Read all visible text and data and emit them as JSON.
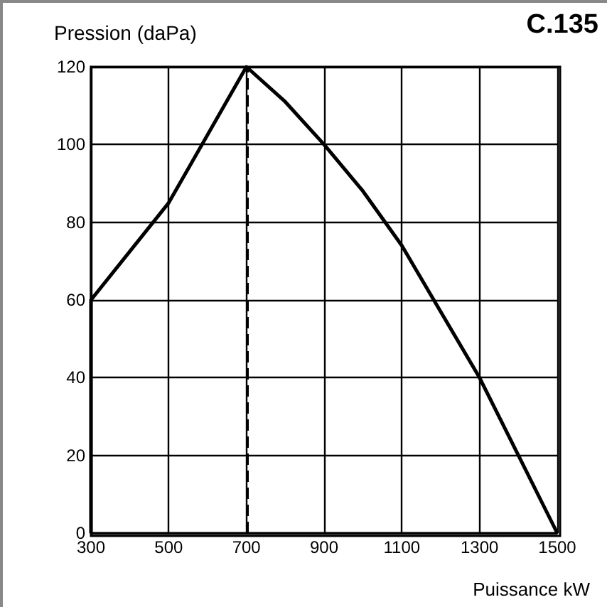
{
  "chart_data": {
    "type": "line",
    "title": "C.135",
    "xlabel": "Puissance kW",
    "ylabel": "Pression (daPa)",
    "x": [
      300,
      300,
      500,
      700,
      800,
      900,
      1000,
      1100,
      1200,
      1300,
      1400,
      1500
    ],
    "series": [
      {
        "color": "#000000",
        "values": [
          0,
          60,
          85,
          120,
          111,
          100,
          88,
          74,
          57,
          40,
          20,
          0
        ]
      }
    ],
    "xlim": [
      300,
      1500
    ],
    "xticks": [
      300,
      500,
      700,
      900,
      1100,
      1300,
      1500
    ],
    "ylim": [
      0,
      120
    ],
    "yticks": [
      0,
      20,
      40,
      60,
      80,
      100,
      120
    ],
    "ref_lines": [
      {
        "axis": "x",
        "value": 700,
        "color": "#000000",
        "line_style": "dashed"
      }
    ],
    "grid": true,
    "marker": "none",
    "line_style": "solid"
  }
}
